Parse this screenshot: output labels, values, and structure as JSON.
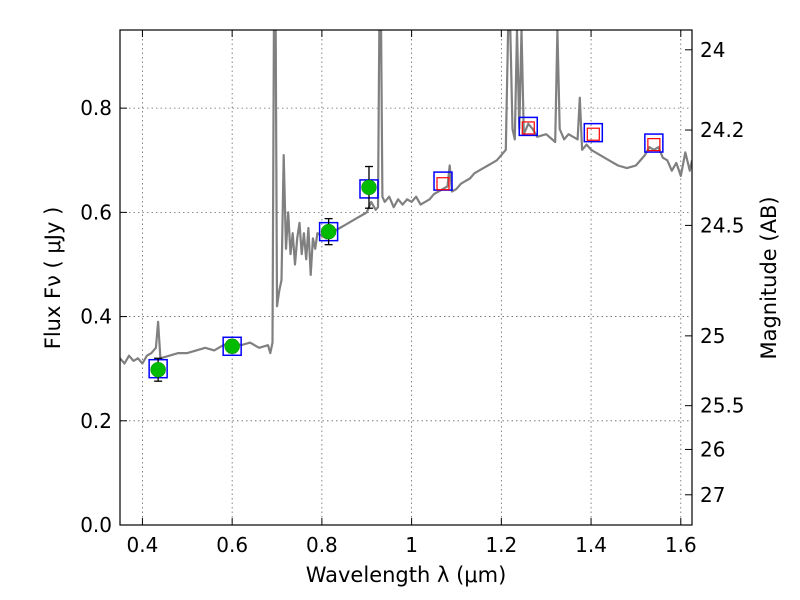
{
  "chart_data": {
    "type": "scatter",
    "title": "",
    "xlabel": "Wavelength  λ (μm)",
    "ylabel": "Flux  Fν  ( μJy )",
    "ylabel_right": "Magnitude (AB)",
    "xlim": [
      0.35,
      1.625
    ],
    "ylim": [
      0.0,
      0.95
    ],
    "grid": true,
    "x_ticks": [
      0.4,
      0.6,
      0.8,
      1.0,
      1.2,
      1.4,
      1.6
    ],
    "x_tick_labels": [
      "0.4",
      "0.6",
      "0.8",
      "1",
      "1.2",
      "1.4",
      "1.6"
    ],
    "y_ticks": [
      0.0,
      0.2,
      0.4,
      0.6,
      0.8
    ],
    "y_tick_labels": [
      "0.0",
      "0.2",
      "0.4",
      "0.6",
      "0.8"
    ],
    "right_ticks": [
      {
        "label": "24",
        "flux": 0.912
      },
      {
        "label": "24.2",
        "flux": 0.758
      },
      {
        "label": "24.5",
        "flux": 0.575
      },
      {
        "label": "25",
        "flux": 0.363
      },
      {
        "label": "25.5",
        "flux": 0.229
      },
      {
        "label": "26",
        "flux": 0.145
      },
      {
        "label": "27",
        "flux": 0.058
      }
    ],
    "series": [
      {
        "kind": "line",
        "color": "#808080",
        "points": [
          [
            0.35,
            0.32
          ],
          [
            0.36,
            0.31
          ],
          [
            0.37,
            0.325
          ],
          [
            0.38,
            0.315
          ],
          [
            0.39,
            0.32
          ],
          [
            0.4,
            0.31
          ],
          [
            0.41,
            0.325
          ],
          [
            0.42,
            0.33
          ],
          [
            0.43,
            0.34
          ],
          [
            0.435,
            0.39
          ],
          [
            0.44,
            0.32
          ],
          [
            0.46,
            0.325
          ],
          [
            0.48,
            0.33
          ],
          [
            0.5,
            0.33
          ],
          [
            0.52,
            0.335
          ],
          [
            0.54,
            0.34
          ],
          [
            0.56,
            0.335
          ],
          [
            0.58,
            0.345
          ],
          [
            0.6,
            0.35
          ],
          [
            0.62,
            0.345
          ],
          [
            0.64,
            0.35
          ],
          [
            0.66,
            0.34
          ],
          [
            0.68,
            0.345
          ],
          [
            0.685,
            0.33
          ],
          [
            0.69,
            0.35
          ],
          [
            0.693,
            0.95
          ],
          [
            0.697,
            0.95
          ],
          [
            0.7,
            0.42
          ],
          [
            0.705,
            0.45
          ],
          [
            0.71,
            0.47
          ],
          [
            0.715,
            0.71
          ],
          [
            0.72,
            0.53
          ],
          [
            0.725,
            0.6
          ],
          [
            0.73,
            0.52
          ],
          [
            0.735,
            0.56
          ],
          [
            0.74,
            0.5
          ],
          [
            0.745,
            0.55
          ],
          [
            0.75,
            0.58
          ],
          [
            0.755,
            0.52
          ],
          [
            0.76,
            0.56
          ],
          [
            0.765,
            0.51
          ],
          [
            0.77,
            0.57
          ],
          [
            0.775,
            0.48
          ],
          [
            0.78,
            0.55
          ],
          [
            0.785,
            0.53
          ],
          [
            0.79,
            0.56
          ],
          [
            0.8,
            0.555
          ],
          [
            0.81,
            0.55
          ],
          [
            0.82,
            0.56
          ],
          [
            0.83,
            0.565
          ],
          [
            0.84,
            0.57
          ],
          [
            0.85,
            0.575
          ],
          [
            0.86,
            0.58
          ],
          [
            0.87,
            0.585
          ],
          [
            0.88,
            0.59
          ],
          [
            0.89,
            0.595
          ],
          [
            0.9,
            0.6
          ],
          [
            0.91,
            0.62
          ],
          [
            0.92,
            0.605
          ],
          [
            0.925,
            0.61
          ],
          [
            0.928,
            0.95
          ],
          [
            0.932,
            0.95
          ],
          [
            0.935,
            0.63
          ],
          [
            0.94,
            0.62
          ],
          [
            0.95,
            0.63
          ],
          [
            0.96,
            0.61
          ],
          [
            0.97,
            0.625
          ],
          [
            0.98,
            0.615
          ],
          [
            0.99,
            0.625
          ],
          [
            1.0,
            0.62
          ],
          [
            1.01,
            0.63
          ],
          [
            1.02,
            0.615
          ],
          [
            1.03,
            0.62
          ],
          [
            1.04,
            0.625
          ],
          [
            1.05,
            0.635
          ],
          [
            1.06,
            0.64
          ],
          [
            1.07,
            0.645
          ],
          [
            1.08,
            0.65
          ],
          [
            1.085,
            0.69
          ],
          [
            1.09,
            0.64
          ],
          [
            1.1,
            0.645
          ],
          [
            1.11,
            0.655
          ],
          [
            1.12,
            0.66
          ],
          [
            1.13,
            0.665
          ],
          [
            1.14,
            0.675
          ],
          [
            1.15,
            0.68
          ],
          [
            1.16,
            0.685
          ],
          [
            1.17,
            0.69
          ],
          [
            1.18,
            0.695
          ],
          [
            1.19,
            0.7
          ],
          [
            1.2,
            0.71
          ],
          [
            1.21,
            0.72
          ],
          [
            1.215,
            0.95
          ],
          [
            1.22,
            0.95
          ],
          [
            1.225,
            0.76
          ],
          [
            1.23,
            0.74
          ],
          [
            1.235,
            0.95
          ],
          [
            1.24,
            0.76
          ],
          [
            1.245,
            0.95
          ],
          [
            1.25,
            0.75
          ],
          [
            1.26,
            0.77
          ],
          [
            1.27,
            0.76
          ],
          [
            1.28,
            0.745
          ],
          [
            1.3,
            0.75
          ],
          [
            1.32,
            0.735
          ],
          [
            1.325,
            0.95
          ],
          [
            1.33,
            0.76
          ],
          [
            1.34,
            0.74
          ],
          [
            1.35,
            0.75
          ],
          [
            1.36,
            0.745
          ],
          [
            1.37,
            0.74
          ],
          [
            1.375,
            0.82
          ],
          [
            1.38,
            0.72
          ],
          [
            1.39,
            0.73
          ],
          [
            1.4,
            0.72
          ],
          [
            1.42,
            0.71
          ],
          [
            1.44,
            0.7
          ],
          [
            1.46,
            0.69
          ],
          [
            1.48,
            0.685
          ],
          [
            1.5,
            0.69
          ],
          [
            1.52,
            0.71
          ],
          [
            1.53,
            0.725
          ],
          [
            1.54,
            0.72
          ],
          [
            1.55,
            0.725
          ],
          [
            1.56,
            0.705
          ],
          [
            1.57,
            0.7
          ],
          [
            1.58,
            0.68
          ],
          [
            1.59,
            0.695
          ],
          [
            1.6,
            0.67
          ],
          [
            1.61,
            0.715
          ],
          [
            1.62,
            0.68
          ],
          [
            1.625,
            0.7
          ]
        ]
      },
      {
        "kind": "square-markers",
        "edgecolor": "#0000ff",
        "points": [
          [
            0.435,
            0.3
          ],
          [
            0.6,
            0.343
          ],
          [
            0.815,
            0.563
          ],
          [
            0.905,
            0.645
          ],
          [
            1.07,
            0.66
          ],
          [
            1.26,
            0.765
          ],
          [
            1.405,
            0.753
          ],
          [
            1.54,
            0.733
          ]
        ]
      },
      {
        "kind": "square-markers",
        "edgecolor": "#ff0000",
        "points": [
          [
            1.07,
            0.655
          ],
          [
            1.26,
            0.762
          ],
          [
            1.405,
            0.75
          ],
          [
            1.54,
            0.73
          ]
        ]
      },
      {
        "kind": "circle-markers",
        "color": "#00bb00",
        "points": [
          [
            0.435,
            0.298
          ],
          [
            0.6,
            0.343
          ],
          [
            0.815,
            0.563
          ],
          [
            0.905,
            0.648
          ]
        ],
        "errors": [
          0.022,
          0.012,
          0.025,
          0.04
        ]
      }
    ]
  }
}
